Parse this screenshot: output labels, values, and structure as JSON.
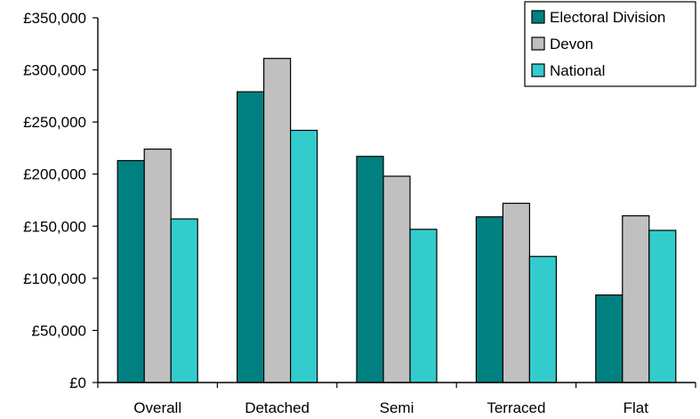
{
  "chart_data": {
    "type": "bar",
    "categories": [
      "Overall",
      "Detached",
      "Semi",
      "Terraced",
      "Flat"
    ],
    "series": [
      {
        "name": "Electoral Division",
        "color": "#008080",
        "values": [
          213000,
          279000,
          217000,
          159000,
          84000
        ]
      },
      {
        "name": "Devon",
        "color": "#c0c0c0",
        "values": [
          224000,
          311000,
          198000,
          172000,
          160000
        ]
      },
      {
        "name": "National",
        "color": "#33cccc",
        "values": [
          157000,
          242000,
          147000,
          121000,
          146000
        ]
      }
    ],
    "ylim": [
      0,
      350000
    ],
    "yticks": [
      0,
      50000,
      100000,
      150000,
      200000,
      250000,
      300000,
      350000
    ],
    "ytick_labels": [
      "£0",
      "£50,000",
      "£100,000",
      "£150,000",
      "£200,000",
      "£250,000",
      "£300,000",
      "£350,000"
    ],
    "legend_position": "top-right",
    "grid": false,
    "title": "",
    "xlabel": "",
    "ylabel": ""
  }
}
